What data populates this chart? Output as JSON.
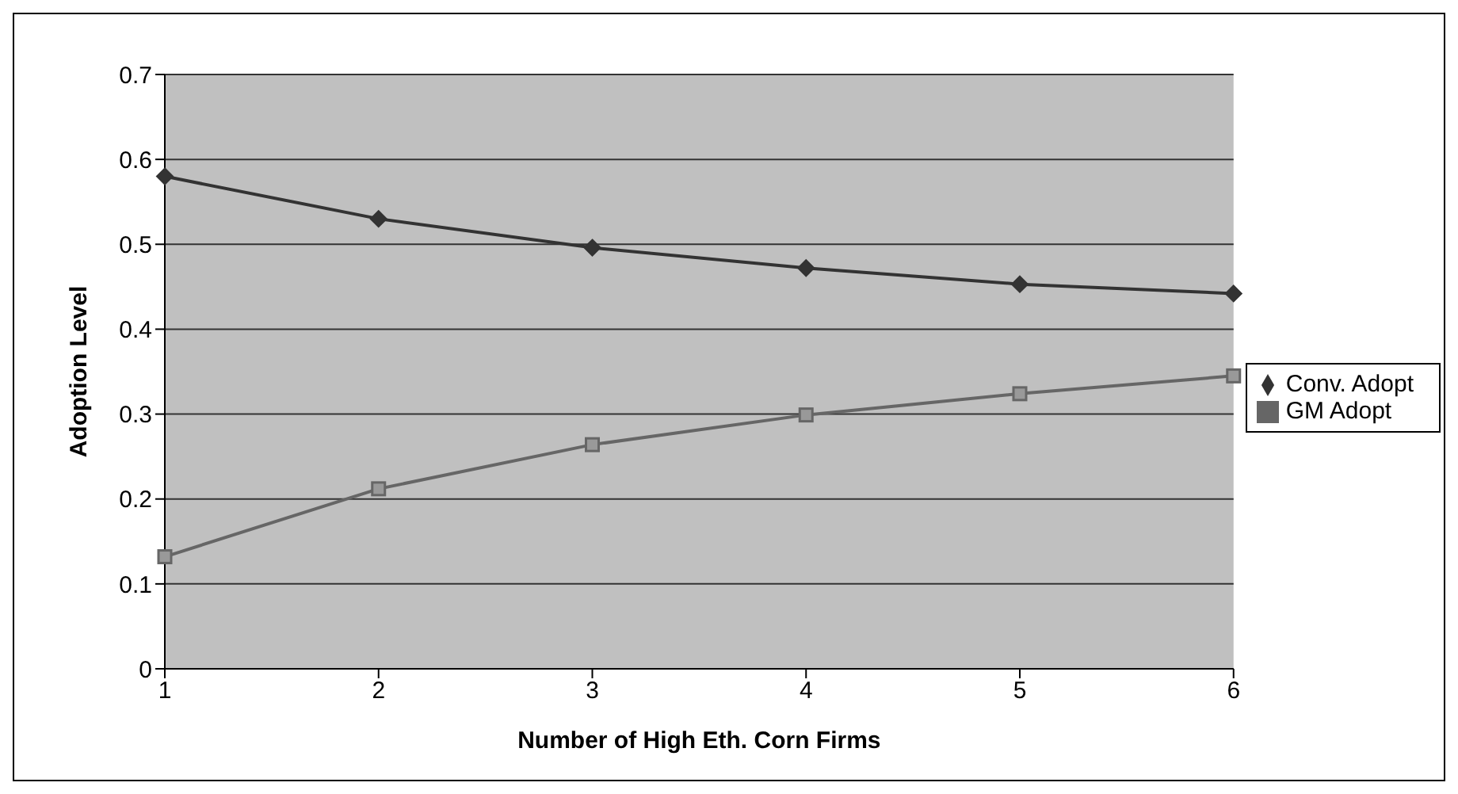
{
  "chart_data": {
    "type": "line",
    "xlabel": "Number of High Eth. Corn Firms",
    "ylabel": "Adoption Level",
    "categories": [
      "1",
      "2",
      "3",
      "4",
      "5",
      "6"
    ],
    "series": [
      {
        "name": "Conv. Adopt",
        "color": "#333333",
        "marker": "diamond",
        "values": [
          0.58,
          0.53,
          0.496,
          0.472,
          0.453,
          0.442
        ]
      },
      {
        "name": "GM Adopt",
        "color": "#666666",
        "marker": "square",
        "values": [
          0.132,
          0.212,
          0.264,
          0.299,
          0.324,
          0.345
        ]
      }
    ],
    "ylim": [
      0,
      0.7
    ],
    "yticks": [
      0,
      0.1,
      0.2,
      0.3,
      0.4,
      0.5,
      0.6,
      0.7
    ],
    "grid": "y",
    "legend": "right",
    "line_style": "solid"
  }
}
